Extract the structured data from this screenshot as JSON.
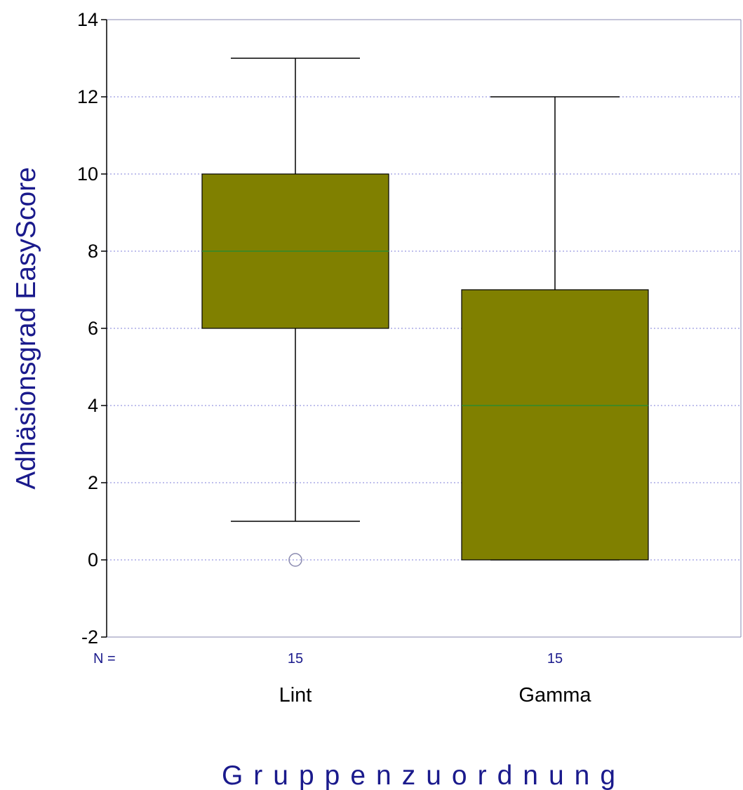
{
  "chart_data": {
    "type": "boxplot",
    "xlabel": "Gruppenzuordnung",
    "ylabel": "Adhäsionsgrad EasyScore",
    "ylim": [
      -2,
      14
    ],
    "yticks": [
      -2,
      0,
      2,
      4,
      6,
      8,
      10,
      12,
      14
    ],
    "grid": "horizontal dotted",
    "n_prefix": "N =",
    "groups": [
      {
        "name": "Lint",
        "n": "15",
        "whisker_low": 1,
        "q1": 6,
        "median": 8,
        "q3": 10,
        "whisker_high": 13,
        "outliers": [
          0
        ]
      },
      {
        "name": "Gamma",
        "n": "15",
        "whisker_low": 0,
        "q1": 0,
        "median": 4,
        "q3": 7,
        "whisker_high": 12,
        "outliers": []
      }
    ]
  },
  "colors": {
    "box_fill": "#808000",
    "median": "#2e8b2e",
    "grid": "#7f7fd8",
    "axis_title": "#1a1a8c",
    "n_labels": "#1a1a8c",
    "frame": "#8a8ab0",
    "outlier": "#8a8ab0"
  }
}
